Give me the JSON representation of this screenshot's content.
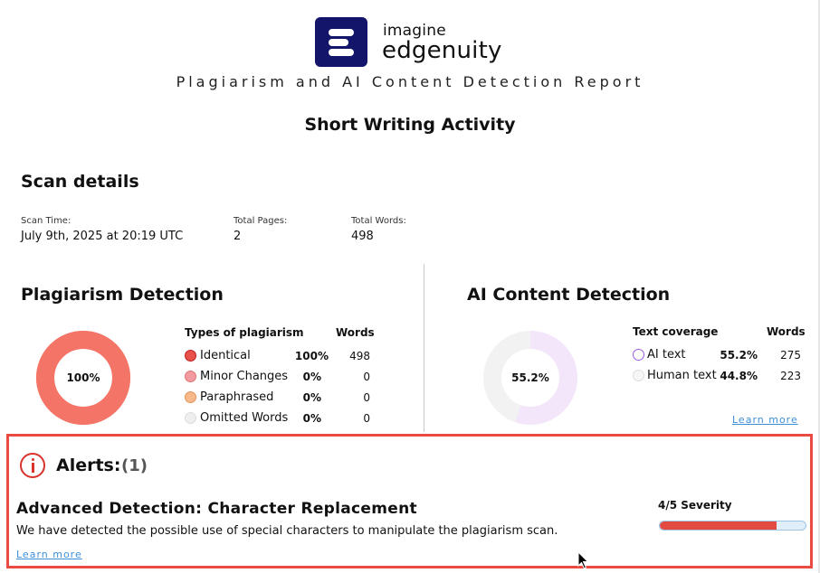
{
  "header": {
    "logo_top": "imagine",
    "logo_bottom": "edgenuity",
    "report_title": "Plagiarism and AI Content Detection Report",
    "activity_title": "Short Writing Activity"
  },
  "scan": {
    "heading": "Scan details",
    "fields": [
      {
        "label": "Scan Time:",
        "value": "July 9th, 2025 at 20:19 UTC"
      },
      {
        "label": "Total Pages:",
        "value": "2"
      },
      {
        "label": "Total Words:",
        "value": "498"
      }
    ]
  },
  "plagiarism": {
    "heading": "Plagiarism Detection",
    "donut_label": "100%",
    "donut_fraction": 1.0,
    "col_type": "Types of plagiarism",
    "col_words": "Words",
    "rows": [
      {
        "label": "Identical",
        "pct": "100%",
        "words": "498",
        "color": "#e8504a"
      },
      {
        "label": "Minor Changes",
        "pct": "0%",
        "words": "0",
        "color": "#f29aa0"
      },
      {
        "label": "Paraphrased",
        "pct": "0%",
        "words": "0",
        "color": "#f7b98a"
      },
      {
        "label": "Omitted Words",
        "pct": "0%",
        "words": "0",
        "color": "#eeeeee"
      }
    ],
    "colors": {
      "ring": "#f47567",
      "hole": "#ffffff"
    }
  },
  "ai": {
    "heading": "AI Content Detection",
    "donut_label": "55.2%",
    "donut_fraction": 0.552,
    "col_type": "Text coverage",
    "col_words": "Words",
    "rows": [
      {
        "label": "AI text",
        "pct": "55.2%",
        "words": "275",
        "color": "#9b5de5"
      },
      {
        "label": "Human text",
        "pct": "44.8%",
        "words": "223",
        "color": "#e0e0e0"
      }
    ],
    "learn_more": "Learn more",
    "colors": {
      "ai": "#f3e6fb",
      "human": "#f2f2f2"
    }
  },
  "alerts": {
    "title": "Alerts:",
    "count": "(1)",
    "item_heading": "Advanced Detection: Character Replacement",
    "item_desc": "We have detected the possible use of special characters to manipulate the plagiarism scan.",
    "learn_more": "Learn more",
    "severity_label": "4/5 Severity",
    "severity_fraction": 0.8,
    "colors": {
      "border": "#e94b43",
      "severity": "#e34a42"
    }
  }
}
